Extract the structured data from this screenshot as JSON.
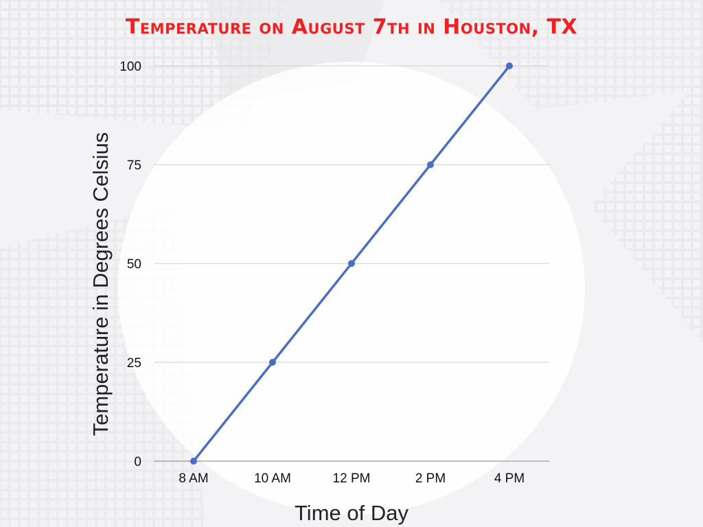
{
  "chart_data": {
    "type": "line",
    "title": "Temperature on August 7th in Houston, TX",
    "xlabel": "Time of Day",
    "ylabel": "Temperature in Degrees Celsius",
    "categories": [
      "8 AM",
      "10 AM",
      "12 PM",
      "2 PM",
      "4 PM"
    ],
    "series": [
      {
        "values": [
          0,
          25,
          50,
          75,
          100
        ]
      }
    ],
    "ylim": [
      0,
      100
    ],
    "yticks": [
      0,
      25,
      50,
      75,
      100
    ],
    "grid": true,
    "legend": "none",
    "colors": {
      "line": "#4a6fc2",
      "grid": "#cfcfd2",
      "title": "#ee2222"
    }
  }
}
